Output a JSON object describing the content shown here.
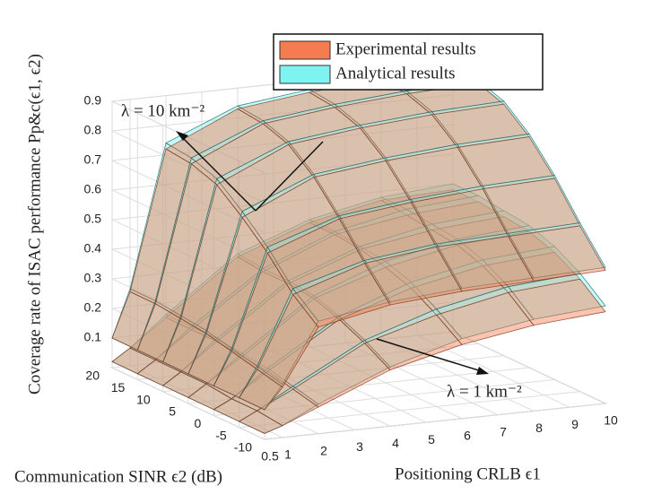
{
  "chart_data": {
    "type": "surface",
    "x_label": "Positioning CRLB ϵ1",
    "y_label": "Communication SINR ϵ2 (dB)",
    "z_label": "Coverage rate of ISAC performance Pp&c(ϵ1, ϵ2)",
    "x": [
      0.5,
      1,
      2,
      4,
      6,
      8,
      10
    ],
    "y": [
      -10,
      -5,
      0,
      5,
      10,
      15,
      20
    ],
    "xlim": [
      0.5,
      10
    ],
    "ylim": [
      -10,
      20
    ],
    "zlim": [
      0,
      0.9
    ],
    "xticks": [
      0.5,
      1,
      2,
      3,
      4,
      5,
      6,
      7,
      8,
      9,
      10
    ],
    "yticks": [
      -10,
      -5,
      0,
      5,
      10,
      15,
      20
    ],
    "zticks": [
      0.1,
      0.2,
      0.3,
      0.4,
      0.5,
      0.6,
      0.7,
      0.8,
      0.9
    ],
    "grid": true,
    "annotations": [
      "λ = 10 km⁻²",
      "λ = 1 km⁻²"
    ],
    "series": [
      {
        "name": "Analytical results",
        "color": "#7ff2f2",
        "values": [
          [
            [
              0.1,
              0.18,
              0.38,
              0.42,
              0.44,
              0.45,
              0.46
            ],
            [
              0.1,
              0.2,
              0.45,
              0.52,
              0.55,
              0.56,
              0.57
            ],
            [
              0.1,
              0.22,
              0.55,
              0.63,
              0.66,
              0.68,
              0.69
            ],
            [
              0.1,
              0.24,
              0.63,
              0.73,
              0.76,
              0.78,
              0.79
            ],
            [
              0.1,
              0.25,
              0.7,
              0.8,
              0.83,
              0.85,
              0.86
            ],
            [
              0.1,
              0.26,
              0.73,
              0.83,
              0.86,
              0.88,
              0.89
            ],
            [
              0.1,
              0.26,
              0.74,
              0.84,
              0.87,
              0.89,
              0.9
            ]
          ],
          [
            [
              0.02,
              0.04,
              0.1,
              0.2,
              0.27,
              0.31,
              0.33
            ],
            [
              0.02,
              0.05,
              0.12,
              0.25,
              0.33,
              0.38,
              0.4
            ],
            [
              0.02,
              0.05,
              0.14,
              0.29,
              0.38,
              0.43,
              0.45
            ],
            [
              0.02,
              0.06,
              0.15,
              0.32,
              0.41,
              0.46,
              0.48
            ],
            [
              0.02,
              0.06,
              0.16,
              0.33,
              0.42,
              0.47,
              0.49
            ],
            [
              0.02,
              0.06,
              0.16,
              0.33,
              0.43,
              0.48,
              0.5
            ],
            [
              0.02,
              0.06,
              0.16,
              0.34,
              0.43,
              0.48,
              0.5
            ]
          ]
        ]
      },
      {
        "name": "Experimental results",
        "color": "#f47c50",
        "values": [
          [
            [
              0.1,
              0.17,
              0.36,
              0.41,
              0.43,
              0.44,
              0.45
            ],
            [
              0.1,
              0.19,
              0.43,
              0.51,
              0.54,
              0.55,
              0.56
            ],
            [
              0.1,
              0.21,
              0.53,
              0.62,
              0.65,
              0.67,
              0.68
            ],
            [
              0.1,
              0.23,
              0.61,
              0.72,
              0.75,
              0.77,
              0.78
            ],
            [
              0.1,
              0.24,
              0.68,
              0.79,
              0.82,
              0.84,
              0.85
            ],
            [
              0.1,
              0.25,
              0.71,
              0.82,
              0.85,
              0.87,
              0.88
            ],
            [
              0.1,
              0.25,
              0.72,
              0.83,
              0.86,
              0.88,
              0.89
            ]
          ],
          [
            [
              0.02,
              0.04,
              0.09,
              0.19,
              0.25,
              0.29,
              0.31
            ],
            [
              0.02,
              0.05,
              0.11,
              0.24,
              0.31,
              0.36,
              0.38
            ],
            [
              0.02,
              0.05,
              0.13,
              0.28,
              0.36,
              0.41,
              0.43
            ],
            [
              0.02,
              0.06,
              0.14,
              0.31,
              0.39,
              0.44,
              0.46
            ],
            [
              0.02,
              0.06,
              0.15,
              0.32,
              0.41,
              0.45,
              0.47
            ],
            [
              0.02,
              0.06,
              0.15,
              0.32,
              0.42,
              0.46,
              0.48
            ],
            [
              0.02,
              0.06,
              0.15,
              0.33,
              0.42,
              0.47,
              0.48
            ]
          ]
        ]
      }
    ]
  }
}
